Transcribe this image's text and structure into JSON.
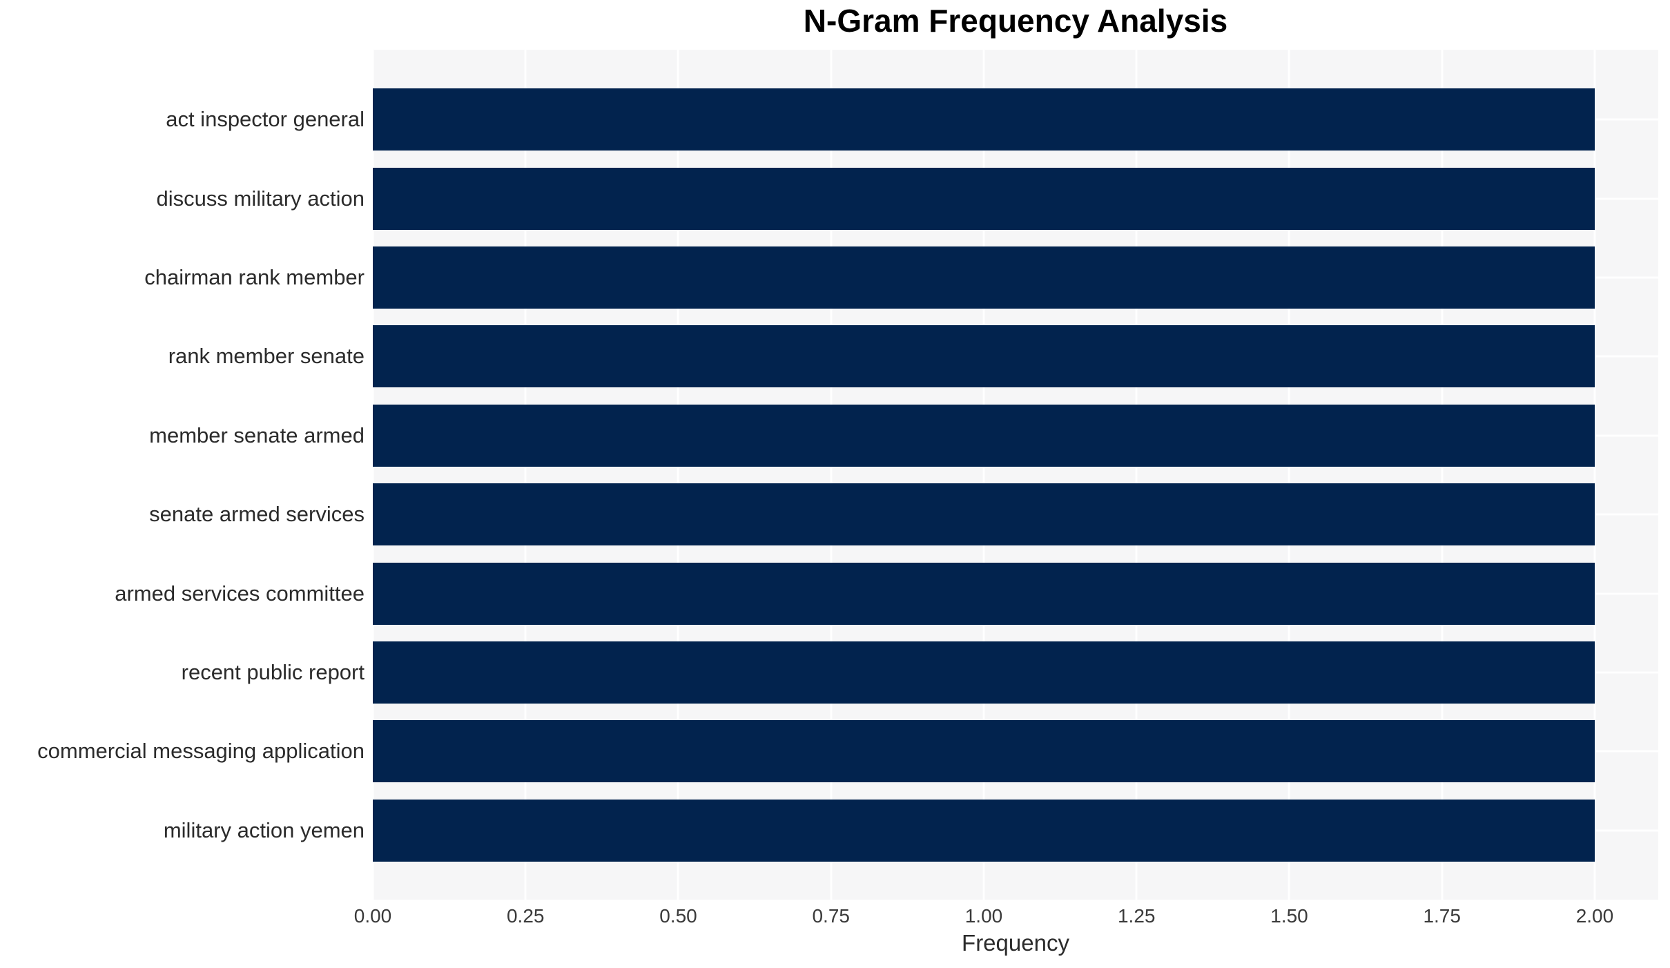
{
  "chart_data": {
    "type": "bar",
    "orientation": "horizontal",
    "title": "N-Gram Frequency Analysis",
    "xlabel": "Frequency",
    "ylabel": "",
    "categories": [
      "act inspector general",
      "discuss military action",
      "chairman rank member",
      "rank member senate",
      "member senate armed",
      "senate armed services",
      "armed services committee",
      "recent public report",
      "commercial messaging application",
      "military action yemen"
    ],
    "values": [
      2.0,
      2.0,
      2.0,
      2.0,
      2.0,
      2.0,
      2.0,
      2.0,
      2.0,
      2.0
    ],
    "xticks": [
      0.0,
      0.25,
      0.5,
      0.75,
      1.0,
      1.25,
      1.5,
      1.75,
      2.0
    ],
    "xtick_labels": [
      "0.00",
      "0.25",
      "0.50",
      "0.75",
      "1.00",
      "1.25",
      "1.50",
      "1.75",
      "2.00"
    ],
    "xlim": [
      0,
      2.104
    ],
    "grid": true,
    "legend": false,
    "colors": {
      "bar": "#02234e",
      "plot_background": "#f6f6f7",
      "gridline": "#ffffff",
      "title_text": "#000000",
      "label_text": "#2b2b2b",
      "tick_text": "#3a3a3a",
      "page_background": "#ffffff"
    }
  }
}
